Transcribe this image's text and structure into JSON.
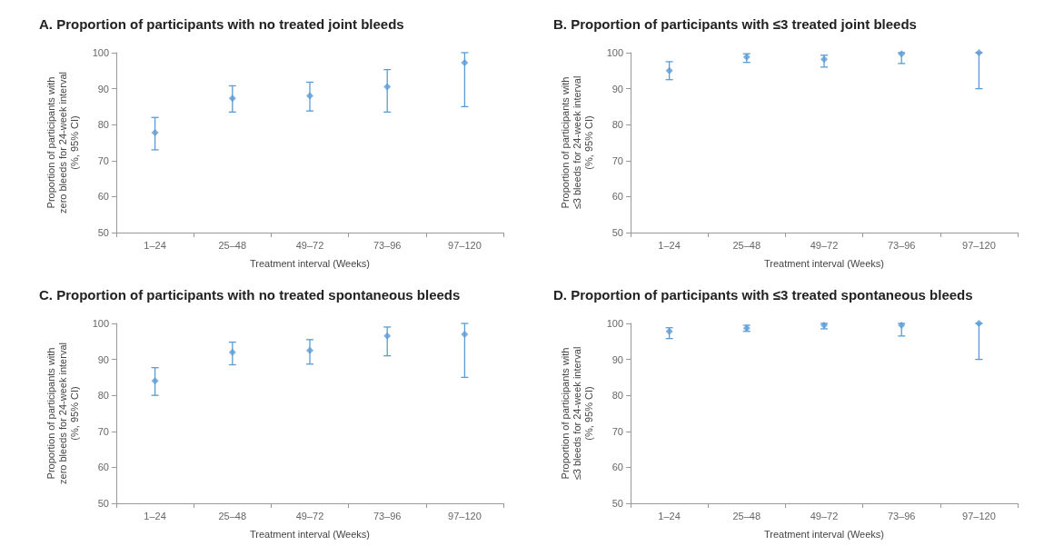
{
  "chart_data": [
    {
      "type": "scatter",
      "title": "A. Proportion of participants with no treated joint bleeds",
      "xlabel": "Treatment interval (Weeks)",
      "ylabel": "Proportion of participants with\nzero bleeds for 24-week interval\n(%, 95% CI)",
      "categories": [
        "1–24",
        "25–48",
        "49–72",
        "73–96",
        "97–120"
      ],
      "color": "#5b9bd5",
      "values": [
        77.8,
        87.3,
        88,
        90.5,
        97.2
      ],
      "errors": [
        [
          73,
          82
        ],
        [
          83.5,
          90.8
        ],
        [
          83.8,
          91.8
        ],
        [
          83.5,
          95.3
        ],
        [
          85,
          100
        ]
      ],
      "ylim": [
        50,
        100
      ],
      "yticks": [
        50,
        60,
        70,
        80,
        90,
        100
      ],
      "grid": false,
      "marker": "diamond"
    },
    {
      "type": "scatter",
      "title": "B. Proportion of participants with ≤3 treated joint bleeds",
      "xlabel": "Treatment interval (Weeks)",
      "ylabel": "Proportion of participants with\n≤3 bleeds for 24-week interval\n(%, 95% CI)",
      "categories": [
        "1–24",
        "25–48",
        "49–72",
        "73–96",
        "97–120"
      ],
      "color": "#5b9bd5",
      "values": [
        95,
        98.8,
        98.2,
        99.7,
        100
      ],
      "errors": [
        [
          92.5,
          97.5
        ],
        [
          97.3,
          99.7
        ],
        [
          96,
          99.3
        ],
        [
          97,
          100
        ],
        [
          90,
          100
        ]
      ],
      "ylim": [
        50,
        100
      ],
      "yticks": [
        50,
        60,
        70,
        80,
        90,
        100
      ],
      "grid": false,
      "marker": "diamond"
    },
    {
      "type": "scatter",
      "title": "C. Proportion of participants with no treated spontaneous bleeds",
      "xlabel": "Treatment interval (Weeks)",
      "ylabel": "Proportion of participants with\nzero bleeds for 24-week interval\n(%, 95% CI)",
      "categories": [
        "1–24",
        "25–48",
        "49–72",
        "73–96",
        "97–120"
      ],
      "color": "#5b9bd5",
      "values": [
        84,
        92,
        92.5,
        96.5,
        97
      ],
      "errors": [
        [
          80,
          87.7
        ],
        [
          88.5,
          94.8
        ],
        [
          88.7,
          95.5
        ],
        [
          91,
          99
        ],
        [
          85,
          100
        ]
      ],
      "ylim": [
        50,
        100
      ],
      "yticks": [
        50,
        60,
        70,
        80,
        90,
        100
      ],
      "grid": false,
      "marker": "diamond"
    },
    {
      "type": "scatter",
      "title": "D. Proportion of participants with ≤3 treated spontaneous bleeds",
      "xlabel": "Treatment interval (Weeks)",
      "ylabel": "Proportion of participants with\n≤3 bleeds for 24-week interval\n(%, 95% CI)",
      "categories": [
        "1–24",
        "25–48",
        "49–72",
        "73–96",
        "97–120"
      ],
      "color": "#5b9bd5",
      "values": [
        97.8,
        98.7,
        99.5,
        99.5,
        100
      ],
      "errors": [
        [
          95.8,
          98.8
        ],
        [
          97.8,
          99.5
        ],
        [
          98.5,
          100
        ],
        [
          96.5,
          100
        ],
        [
          90,
          100
        ]
      ],
      "ylim": [
        50,
        100
      ],
      "yticks": [
        50,
        60,
        70,
        80,
        90,
        100
      ],
      "grid": false,
      "marker": "diamond"
    }
  ]
}
